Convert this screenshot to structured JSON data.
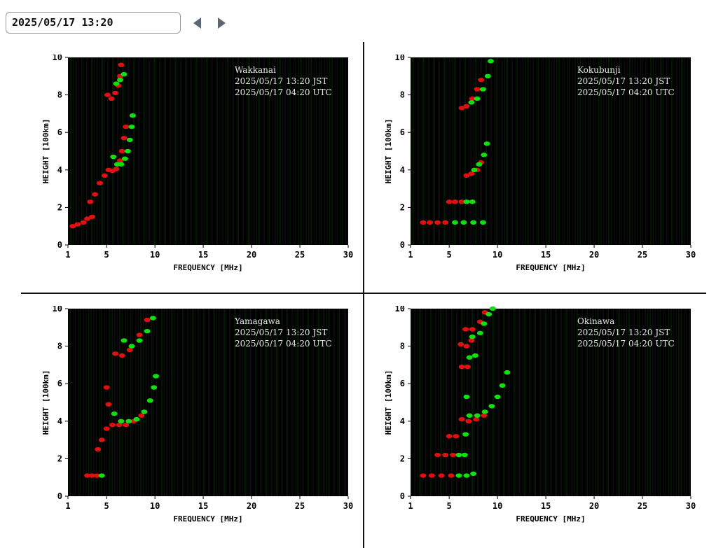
{
  "toolbar": {
    "datetime_value": "2025/05/17 13:20",
    "prev_icon": "triangle-left-icon",
    "next_icon": "triangle-right-icon"
  },
  "colors": {
    "background": "#000000",
    "ordinary_trace": "#e01010",
    "extraordinary_trace": "#10e010",
    "axis_text": "#000000",
    "station_text": "#e8e8e8"
  },
  "chart_data": [
    {
      "type": "scatter",
      "station": "Wakkanai",
      "jst": "2025/05/17 13:20 JST",
      "utc": "2025/05/17 04:20 UTC",
      "xlabel": "FREQUENCY [MHz]",
      "ylabel": "HEIGHT [100km]",
      "xlim": [
        1,
        30
      ],
      "ylim": [
        0,
        10
      ],
      "xticks": [
        1,
        5,
        10,
        15,
        20,
        25,
        30
      ],
      "yticks": [
        0,
        2,
        4,
        6,
        8,
        10
      ],
      "series": [
        {
          "color": "red",
          "points": [
            [
              1.5,
              1.0
            ],
            [
              2.0,
              1.1
            ],
            [
              2.6,
              1.2
            ],
            [
              3.0,
              1.4
            ],
            [
              3.5,
              1.5
            ],
            [
              3.3,
              2.3
            ],
            [
              3.8,
              2.7
            ],
            [
              4.3,
              3.3
            ],
            [
              4.8,
              3.7
            ],
            [
              5.2,
              4.0
            ],
            [
              5.6,
              3.95
            ],
            [
              6.0,
              4.05
            ],
            [
              6.4,
              4.5
            ],
            [
              6.6,
              5.0
            ],
            [
              6.8,
              5.7
            ],
            [
              7.0,
              6.3
            ],
            [
              5.1,
              8.0
            ],
            [
              5.5,
              7.8
            ],
            [
              5.9,
              8.1
            ],
            [
              6.2,
              8.5
            ],
            [
              6.4,
              9.0
            ],
            [
              6.5,
              9.6
            ]
          ]
        },
        {
          "color": "green",
          "points": [
            [
              5.7,
              4.7
            ],
            [
              6.1,
              4.3
            ],
            [
              6.5,
              4.3
            ],
            [
              6.9,
              4.6
            ],
            [
              7.2,
              5.0
            ],
            [
              7.4,
              5.6
            ],
            [
              7.6,
              6.3
            ],
            [
              7.7,
              6.9
            ],
            [
              6.0,
              8.6
            ],
            [
              6.4,
              8.8
            ],
            [
              6.8,
              9.1
            ]
          ]
        }
      ]
    },
    {
      "type": "scatter",
      "station": "Kokubunji",
      "jst": "2025/05/17 13:20 JST",
      "utc": "2025/05/17 04:20 UTC",
      "xlabel": "FREQUENCY [MHz]",
      "ylabel": "HEIGHT [100km]",
      "xlim": [
        1,
        30
      ],
      "ylim": [
        0,
        10
      ],
      "xticks": [
        1,
        5,
        10,
        15,
        20,
        25,
        30
      ],
      "yticks": [
        0,
        2,
        4,
        6,
        8,
        10
      ],
      "series": [
        {
          "color": "red",
          "points": [
            [
              2.3,
              1.2
            ],
            [
              3.0,
              1.2
            ],
            [
              3.8,
              1.2
            ],
            [
              4.6,
              1.2
            ],
            [
              5.0,
              2.3
            ],
            [
              5.6,
              2.3
            ],
            [
              6.3,
              2.3
            ],
            [
              6.8,
              3.7
            ],
            [
              7.3,
              3.8
            ],
            [
              7.9,
              4.0
            ],
            [
              8.3,
              4.4
            ],
            [
              6.3,
              7.3
            ],
            [
              6.8,
              7.4
            ],
            [
              7.4,
              7.8
            ],
            [
              7.9,
              8.3
            ],
            [
              8.3,
              8.8
            ]
          ]
        },
        {
          "color": "green",
          "points": [
            [
              5.6,
              1.2
            ],
            [
              6.5,
              1.2
            ],
            [
              7.5,
              1.2
            ],
            [
              8.5,
              1.2
            ],
            [
              6.8,
              2.3
            ],
            [
              7.4,
              2.3
            ],
            [
              7.6,
              4.0
            ],
            [
              8.1,
              4.3
            ],
            [
              8.6,
              4.8
            ],
            [
              8.9,
              5.4
            ],
            [
              7.3,
              7.6
            ],
            [
              7.9,
              7.8
            ],
            [
              8.5,
              8.3
            ],
            [
              9.0,
              9.0
            ],
            [
              9.3,
              9.8
            ]
          ]
        }
      ]
    },
    {
      "type": "scatter",
      "station": "Yamagawa",
      "jst": "2025/05/17 13:20 JST",
      "utc": "2025/05/17 04:20 UTC",
      "xlabel": "FREQUENCY [MHz]",
      "ylabel": "HEIGHT [100km]",
      "xlim": [
        1,
        30
      ],
      "ylim": [
        0,
        10
      ],
      "xticks": [
        1,
        5,
        10,
        15,
        20,
        25,
        30
      ],
      "yticks": [
        0,
        2,
        4,
        6,
        8,
        10
      ],
      "series": [
        {
          "color": "red",
          "points": [
            [
              3.0,
              1.1
            ],
            [
              3.5,
              1.1
            ],
            [
              4.0,
              1.1
            ],
            [
              4.1,
              2.5
            ],
            [
              4.5,
              3.0
            ],
            [
              5.0,
              3.6
            ],
            [
              5.6,
              3.8
            ],
            [
              6.3,
              3.8
            ],
            [
              7.0,
              3.8
            ],
            [
              7.8,
              4.0
            ],
            [
              8.6,
              4.3
            ],
            [
              5.0,
              5.8
            ],
            [
              5.2,
              4.9
            ],
            [
              5.9,
              7.6
            ],
            [
              6.6,
              7.5
            ],
            [
              7.4,
              7.8
            ],
            [
              8.4,
              8.6
            ],
            [
              9.2,
              9.4
            ]
          ]
        },
        {
          "color": "green",
          "points": [
            [
              4.5,
              1.1
            ],
            [
              5.8,
              4.4
            ],
            [
              6.5,
              4.0
            ],
            [
              7.3,
              4.0
            ],
            [
              8.1,
              4.1
            ],
            [
              8.9,
              4.5
            ],
            [
              9.5,
              5.1
            ],
            [
              9.9,
              5.8
            ],
            [
              10.1,
              6.4
            ],
            [
              6.8,
              8.3
            ],
            [
              7.6,
              8.0
            ],
            [
              8.4,
              8.3
            ],
            [
              9.2,
              8.8
            ],
            [
              9.8,
              9.5
            ]
          ]
        }
      ]
    },
    {
      "type": "scatter",
      "station": "Okinawa",
      "jst": "2025/05/17 13:20 JST",
      "utc": "2025/05/17 04:20 UTC",
      "xlabel": "FREQUENCY [MHz]",
      "ylabel": "HEIGHT [100km]",
      "xlim": [
        1,
        30
      ],
      "ylim": [
        0,
        10
      ],
      "xticks": [
        1,
        5,
        10,
        15,
        20,
        25,
        30
      ],
      "yticks": [
        0,
        2,
        4,
        6,
        8,
        10
      ],
      "series": [
        {
          "color": "red",
          "points": [
            [
              2.3,
              1.1
            ],
            [
              3.2,
              1.1
            ],
            [
              4.2,
              1.1
            ],
            [
              5.2,
              1.1
            ],
            [
              3.8,
              2.2
            ],
            [
              4.6,
              2.2
            ],
            [
              5.4,
              2.2
            ],
            [
              5.0,
              3.2
            ],
            [
              5.7,
              3.2
            ],
            [
              6.3,
              4.1
            ],
            [
              7.0,
              4.0
            ],
            [
              7.8,
              4.1
            ],
            [
              8.6,
              4.3
            ],
            [
              6.3,
              6.9
            ],
            [
              6.9,
              6.9
            ],
            [
              6.2,
              8.1
            ],
            [
              6.8,
              8.0
            ],
            [
              7.3,
              8.3
            ],
            [
              6.7,
              8.9
            ],
            [
              7.4,
              8.9
            ],
            [
              8.2,
              9.3
            ],
            [
              8.7,
              9.8
            ]
          ]
        },
        {
          "color": "green",
          "points": [
            [
              6.0,
              1.1
            ],
            [
              6.8,
              1.1
            ],
            [
              7.5,
              1.2
            ],
            [
              6.0,
              2.2
            ],
            [
              6.6,
              2.2
            ],
            [
              6.7,
              3.3
            ],
            [
              7.1,
              4.3
            ],
            [
              7.9,
              4.3
            ],
            [
              8.7,
              4.5
            ],
            [
              9.4,
              4.8
            ],
            [
              10.0,
              5.3
            ],
            [
              10.5,
              5.9
            ],
            [
              11.0,
              6.6
            ],
            [
              6.8,
              5.3
            ],
            [
              7.1,
              7.4
            ],
            [
              7.7,
              7.5
            ],
            [
              7.4,
              8.5
            ],
            [
              8.2,
              8.7
            ],
            [
              8.6,
              9.2
            ],
            [
              9.1,
              9.7
            ],
            [
              9.5,
              10.0
            ]
          ]
        }
      ]
    }
  ]
}
